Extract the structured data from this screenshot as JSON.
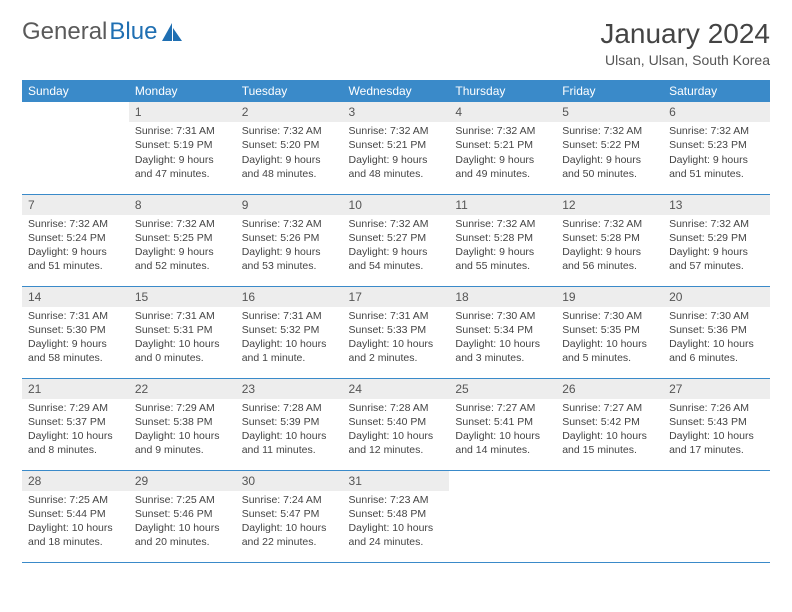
{
  "brand": {
    "part1": "General",
    "part2": "Blue"
  },
  "title": "January 2024",
  "subtitle": "Ulsan, Ulsan, South Korea",
  "colors": {
    "header_bg": "#3a8ac9",
    "header_text": "#ffffff",
    "daynum_bg": "#ededed",
    "row_border": "#3a8ac9",
    "brand_gray": "#5a5a5a",
    "brand_blue": "#1f6fb2"
  },
  "weekdays": [
    "Sunday",
    "Monday",
    "Tuesday",
    "Wednesday",
    "Thursday",
    "Friday",
    "Saturday"
  ],
  "start_weekday": 1,
  "days_in_month": 31,
  "days": {
    "1": {
      "sunrise": "7:31 AM",
      "sunset": "5:19 PM",
      "daylight": "9 hours and 47 minutes."
    },
    "2": {
      "sunrise": "7:32 AM",
      "sunset": "5:20 PM",
      "daylight": "9 hours and 48 minutes."
    },
    "3": {
      "sunrise": "7:32 AM",
      "sunset": "5:21 PM",
      "daylight": "9 hours and 48 minutes."
    },
    "4": {
      "sunrise": "7:32 AM",
      "sunset": "5:21 PM",
      "daylight": "9 hours and 49 minutes."
    },
    "5": {
      "sunrise": "7:32 AM",
      "sunset": "5:22 PM",
      "daylight": "9 hours and 50 minutes."
    },
    "6": {
      "sunrise": "7:32 AM",
      "sunset": "5:23 PM",
      "daylight": "9 hours and 51 minutes."
    },
    "7": {
      "sunrise": "7:32 AM",
      "sunset": "5:24 PM",
      "daylight": "9 hours and 51 minutes."
    },
    "8": {
      "sunrise": "7:32 AM",
      "sunset": "5:25 PM",
      "daylight": "9 hours and 52 minutes."
    },
    "9": {
      "sunrise": "7:32 AM",
      "sunset": "5:26 PM",
      "daylight": "9 hours and 53 minutes."
    },
    "10": {
      "sunrise": "7:32 AM",
      "sunset": "5:27 PM",
      "daylight": "9 hours and 54 minutes."
    },
    "11": {
      "sunrise": "7:32 AM",
      "sunset": "5:28 PM",
      "daylight": "9 hours and 55 minutes."
    },
    "12": {
      "sunrise": "7:32 AM",
      "sunset": "5:28 PM",
      "daylight": "9 hours and 56 minutes."
    },
    "13": {
      "sunrise": "7:32 AM",
      "sunset": "5:29 PM",
      "daylight": "9 hours and 57 minutes."
    },
    "14": {
      "sunrise": "7:31 AM",
      "sunset": "5:30 PM",
      "daylight": "9 hours and 58 minutes."
    },
    "15": {
      "sunrise": "7:31 AM",
      "sunset": "5:31 PM",
      "daylight": "10 hours and 0 minutes."
    },
    "16": {
      "sunrise": "7:31 AM",
      "sunset": "5:32 PM",
      "daylight": "10 hours and 1 minute."
    },
    "17": {
      "sunrise": "7:31 AM",
      "sunset": "5:33 PM",
      "daylight": "10 hours and 2 minutes."
    },
    "18": {
      "sunrise": "7:30 AM",
      "sunset": "5:34 PM",
      "daylight": "10 hours and 3 minutes."
    },
    "19": {
      "sunrise": "7:30 AM",
      "sunset": "5:35 PM",
      "daylight": "10 hours and 5 minutes."
    },
    "20": {
      "sunrise": "7:30 AM",
      "sunset": "5:36 PM",
      "daylight": "10 hours and 6 minutes."
    },
    "21": {
      "sunrise": "7:29 AM",
      "sunset": "5:37 PM",
      "daylight": "10 hours and 8 minutes."
    },
    "22": {
      "sunrise": "7:29 AM",
      "sunset": "5:38 PM",
      "daylight": "10 hours and 9 minutes."
    },
    "23": {
      "sunrise": "7:28 AM",
      "sunset": "5:39 PM",
      "daylight": "10 hours and 11 minutes."
    },
    "24": {
      "sunrise": "7:28 AM",
      "sunset": "5:40 PM",
      "daylight": "10 hours and 12 minutes."
    },
    "25": {
      "sunrise": "7:27 AM",
      "sunset": "5:41 PM",
      "daylight": "10 hours and 14 minutes."
    },
    "26": {
      "sunrise": "7:27 AM",
      "sunset": "5:42 PM",
      "daylight": "10 hours and 15 minutes."
    },
    "27": {
      "sunrise": "7:26 AM",
      "sunset": "5:43 PM",
      "daylight": "10 hours and 17 minutes."
    },
    "28": {
      "sunrise": "7:25 AM",
      "sunset": "5:44 PM",
      "daylight": "10 hours and 18 minutes."
    },
    "29": {
      "sunrise": "7:25 AM",
      "sunset": "5:46 PM",
      "daylight": "10 hours and 20 minutes."
    },
    "30": {
      "sunrise": "7:24 AM",
      "sunset": "5:47 PM",
      "daylight": "10 hours and 22 minutes."
    },
    "31": {
      "sunrise": "7:23 AM",
      "sunset": "5:48 PM",
      "daylight": "10 hours and 24 minutes."
    }
  },
  "labels": {
    "sunrise": "Sunrise: ",
    "sunset": "Sunset: ",
    "daylight": "Daylight: "
  }
}
